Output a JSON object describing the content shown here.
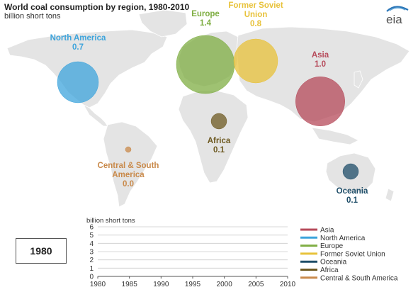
{
  "chart_data": [
    {
      "type": "bubble-map",
      "title": "World coal consumption by region, 1980-2010",
      "subtitle": "billion short tons",
      "regions": [
        {
          "name": "North America",
          "value_label": "0.7",
          "value": 0.7,
          "color": "#3da4dc"
        },
        {
          "name": "Europe",
          "value_label": "1.4",
          "value": 1.4,
          "color": "#7fae43"
        },
        {
          "name": "Former Soviet Union",
          "name_lines": [
            "Former Soviet",
            "Union"
          ],
          "value_label": "0.8",
          "value": 0.8,
          "color": "#e8c23a"
        },
        {
          "name": "Asia",
          "value_label": "1.0",
          "value": 1.0,
          "color": "#b64a5a"
        },
        {
          "name": "Africa",
          "value_label": "0.1",
          "value": 0.1,
          "color": "#6e5a22"
        },
        {
          "name": "Central & South America",
          "name_lines": [
            "Central & South",
            "America"
          ],
          "value_label": "0.0",
          "value": 0.0,
          "color": "#c98a4b"
        },
        {
          "name": "Oceania",
          "value_label": "0.1",
          "value": 0.1,
          "color": "#1f4e69"
        }
      ]
    },
    {
      "type": "line",
      "ylabel": "billion short tons",
      "ylim": [
        0,
        6
      ],
      "yticks": [
        "0",
        "1",
        "2",
        "3",
        "4",
        "5",
        "6"
      ],
      "xlim": [
        1980,
        2010
      ],
      "xticks": [
        "1980",
        "1985",
        "1990",
        "1995",
        "2000",
        "2005",
        "2010"
      ],
      "grid": true,
      "legend_position": "right",
      "series": [
        {
          "name": "Asia",
          "color": "#b64a5a",
          "values": []
        },
        {
          "name": "North America",
          "color": "#3da4dc",
          "values": []
        },
        {
          "name": "Europe",
          "color": "#7fae43",
          "values": []
        },
        {
          "name": "Former Soviet Union",
          "color": "#e8c23a",
          "values": []
        },
        {
          "name": "Oceania",
          "color": "#1f4e69",
          "values": []
        },
        {
          "name": "Africa",
          "color": "#6e5a22",
          "values": []
        },
        {
          "name": "Central & South America",
          "color": "#c98a4b",
          "values": []
        }
      ]
    }
  ],
  "current_year": "1980",
  "logo_text": "eia",
  "colors": {
    "land": "#e4e4e4",
    "border": "#ffffff",
    "grid": "#cccccc",
    "axis": "#555555"
  }
}
